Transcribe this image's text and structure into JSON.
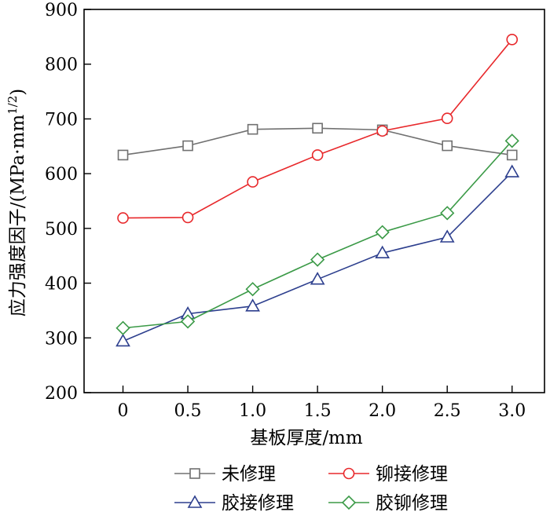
{
  "chart_data": {
    "type": "line",
    "xlabel": "基板厚度/mm",
    "ylabel_main": "应力强度因子/(MPa·mm",
    "ylabel_sup": "1/2",
    "ylabel_close": ")",
    "xlim": [
      -0.3,
      3.25
    ],
    "ylim": [
      200,
      900
    ],
    "x_ticks": [
      0,
      0.5,
      1.0,
      1.5,
      2.0,
      2.5,
      3.0
    ],
    "x_tick_labels": [
      "0",
      "0.5",
      "1.0",
      "1.5",
      "2.0",
      "2.5",
      "3.0"
    ],
    "y_ticks": [
      200,
      300,
      400,
      500,
      600,
      700,
      800,
      900
    ],
    "y_tick_labels": [
      "200",
      "300",
      "400",
      "500",
      "600",
      "700",
      "800",
      "900"
    ],
    "x": [
      0,
      0.5,
      1.0,
      1.5,
      2.0,
      2.5,
      3.0
    ],
    "series": [
      {
        "name": "未修理",
        "marker": "square",
        "color": "#707070",
        "values": [
          634,
          651,
          681,
          683,
          680,
          651,
          634
        ]
      },
      {
        "name": "铆接修理",
        "marker": "circle",
        "color": "#e8282b",
        "values": [
          519,
          520,
          585,
          634,
          678,
          701,
          845
        ]
      },
      {
        "name": "胶接修理",
        "marker": "triangle",
        "color": "#2d3f8e",
        "values": [
          294,
          344,
          358,
          407,
          455,
          484,
          603
        ]
      },
      {
        "name": "胶铆修理",
        "marker": "diamond",
        "color": "#3b9a47",
        "values": [
          318,
          330,
          389,
          443,
          493,
          528,
          660
        ]
      }
    ],
    "legend_position": "bottom",
    "grid": false
  }
}
